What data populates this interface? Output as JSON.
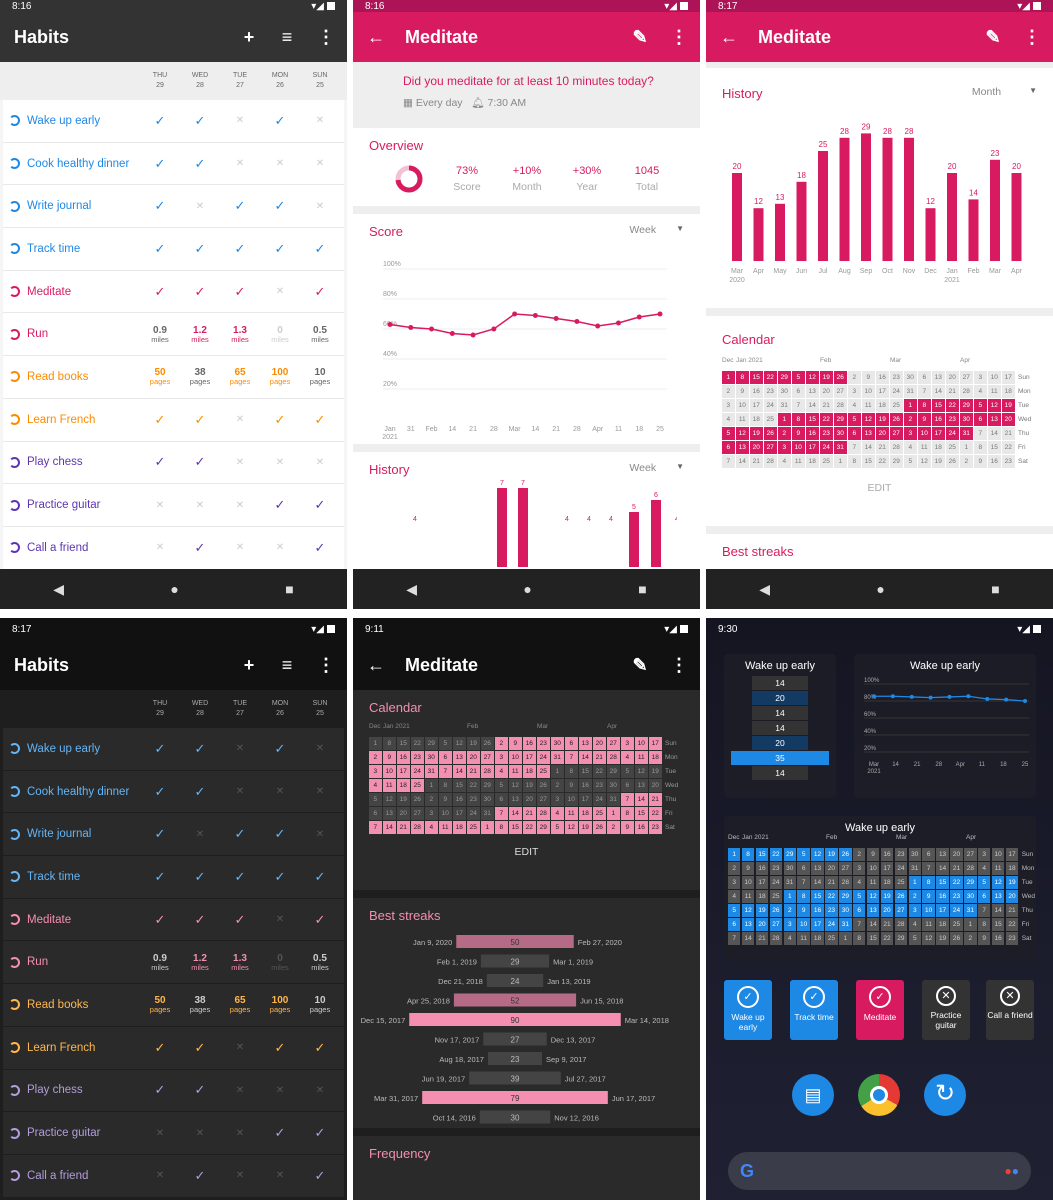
{
  "status": {
    "t1": "8:16",
    "t2": "8:16",
    "t3": "8:17",
    "t4": "8:17",
    "t5": "9:11",
    "t6": "9:30"
  },
  "habits_header": {
    "title": "Habits",
    "add": "+",
    "filter": "≡",
    "more": "⋮"
  },
  "days": [
    {
      "d": "THU",
      "n": "29"
    },
    {
      "d": "WED",
      "n": "28"
    },
    {
      "d": "TUE",
      "n": "27"
    },
    {
      "d": "MON",
      "n": "26"
    },
    {
      "d": "SUN",
      "n": "25"
    }
  ],
  "habits": [
    {
      "name": "Wake up early",
      "color": "#1e88e5",
      "dcolor": "#64b5f6",
      "vals": [
        "c",
        "c",
        "x",
        "c",
        "x"
      ]
    },
    {
      "name": "Cook healthy dinner",
      "color": "#1e88e5",
      "dcolor": "#64b5f6",
      "vals": [
        "c",
        "c",
        "x",
        "x",
        "x"
      ]
    },
    {
      "name": "Write journal",
      "color": "#1e88e5",
      "dcolor": "#64b5f6",
      "vals": [
        "c",
        "x",
        "c",
        "c",
        "x"
      ]
    },
    {
      "name": "Track time",
      "color": "#1e88e5",
      "dcolor": "#64b5f6",
      "vals": [
        "c",
        "c",
        "c",
        "c",
        "c"
      ]
    },
    {
      "name": "Meditate",
      "color": "#d81b60",
      "dcolor": "#f48fb1",
      "vals": [
        "c",
        "c",
        "c",
        "x",
        "c"
      ]
    },
    {
      "name": "Run",
      "color": "#d81b60",
      "dcolor": "#f48fb1",
      "num": [
        [
          "0.9",
          "miles",
          0
        ],
        [
          "1.2",
          "miles",
          1
        ],
        [
          "1.3",
          "miles",
          1
        ],
        [
          "0",
          "miles",
          2
        ],
        [
          "0.5",
          "miles",
          0
        ]
      ]
    },
    {
      "name": "Read books",
      "color": "#fb8c00",
      "dcolor": "#ffb74d",
      "num": [
        [
          "50",
          "pages",
          1
        ],
        [
          "38",
          "pages",
          0
        ],
        [
          "65",
          "pages",
          1
        ],
        [
          "100",
          "pages",
          1
        ],
        [
          "10",
          "pages",
          0
        ]
      ]
    },
    {
      "name": "Learn French",
      "color": "#fb8c00",
      "dcolor": "#ffb74d",
      "vals": [
        "c",
        "c",
        "x",
        "c",
        "c"
      ]
    },
    {
      "name": "Play chess",
      "color": "#5e35b1",
      "dcolor": "#b39ddb",
      "vals": [
        "c",
        "c",
        "x",
        "x",
        "x"
      ]
    },
    {
      "name": "Practice guitar",
      "color": "#5e35b1",
      "dcolor": "#b39ddb",
      "vals": [
        "x",
        "x",
        "x",
        "c",
        "c"
      ]
    },
    {
      "name": "Call a friend",
      "color": "#5e35b1",
      "dcolor": "#b39ddb",
      "vals": [
        "x",
        "c",
        "x",
        "x",
        "c"
      ]
    }
  ],
  "meditate": {
    "title": "Meditate",
    "question": "Did you meditate for at least 10 minutes today?",
    "freq": "Every day",
    "time": "7:30 AM"
  },
  "overview": {
    "title": "Overview",
    "items": [
      {
        "v": "73%",
        "l": "Score"
      },
      {
        "v": "+10%",
        "l": "Month"
      },
      {
        "v": "+30%",
        "l": "Year"
      },
      {
        "v": "1045",
        "l": "Total"
      }
    ],
    "score": 0.73
  },
  "score_card": {
    "title": "Score",
    "period": "Week",
    "yticks": [
      "100%",
      "80%",
      "60%",
      "40%",
      "20%"
    ],
    "xticks": [
      "Jan\n2021",
      "31",
      "Feb",
      "14",
      "21",
      "28",
      "Mar",
      "14",
      "21",
      "28",
      "Apr",
      "11",
      "18",
      "25"
    ]
  },
  "history_card": {
    "title": "History",
    "period": "Week",
    "labels": [
      "4",
      "7",
      "7",
      "4",
      "4",
      "4",
      "5",
      "6",
      "4"
    ]
  },
  "history_month": {
    "title": "History",
    "period": "Month",
    "labels": [
      "Mar\n2020",
      "Apr",
      "May",
      "Jun",
      "Jul",
      "Aug",
      "Sep",
      "Oct",
      "Nov",
      "Dec",
      "Jan\n2021",
      "Feb",
      "Mar",
      "Apr"
    ]
  },
  "chart_data": [
    {
      "type": "line",
      "title": "Score",
      "x": [
        "Jan 2021",
        "31",
        "Feb",
        "14",
        "21",
        "28",
        "Mar",
        "14",
        "21",
        "28",
        "Apr",
        "11",
        "18",
        "25"
      ],
      "values": [
        63,
        61,
        60,
        57,
        56,
        60,
        70,
        69,
        67,
        65,
        62,
        64,
        68,
        70
      ],
      "ylim": [
        0,
        100
      ]
    },
    {
      "type": "bar",
      "title": "History",
      "categories": [
        "Mar 2020",
        "Apr",
        "May",
        "Jun",
        "Jul",
        "Aug",
        "Sep",
        "Oct",
        "Nov",
        "Dec",
        "Jan 2021",
        "Feb",
        "Mar",
        "Apr"
      ],
      "values": [
        20,
        12,
        13,
        18,
        25,
        28,
        29,
        28,
        28,
        12,
        20,
        14,
        23,
        20
      ]
    },
    {
      "type": "bar",
      "title": "Best streaks",
      "categories": [
        "Jan 9, 2020",
        "Feb 1, 2019",
        "Dec 21, 2018",
        "Apr 25, 2018",
        "Dec 15, 2017",
        "Nov 17, 2017",
        "Aug 18, 2017",
        "Jun 19, 2017",
        "Mar 31, 2017",
        "Oct 14, 2016"
      ],
      "values": [
        50,
        29,
        24,
        52,
        90,
        27,
        23,
        39,
        79,
        30
      ],
      "ends": [
        "Feb 27, 2020",
        "Mar 1, 2019",
        "Jan 13, 2019",
        "Jun 15, 2018",
        "Mar 14, 2018",
        "Dec 13, 2017",
        "Sep 9, 2017",
        "Jul 27, 2017",
        "Jun 17, 2017",
        "Nov 12, 2016"
      ]
    }
  ],
  "calendar": {
    "title": "Calendar",
    "edit": "EDIT",
    "months": [
      "Dec",
      "Jan 2021",
      "Feb",
      "Mar",
      "Apr"
    ],
    "weekdays": [
      "Sun",
      "Mon",
      "Tue",
      "Wed",
      "Thu",
      "Fri",
      "Sat"
    ]
  },
  "streaks_title": "Best streaks",
  "frequency_title": "Frequency",
  "widgets": {
    "w1": "Wake up early",
    "w1vals": [
      "14",
      "20",
      "14",
      "14",
      "20",
      "35",
      "14"
    ],
    "w2": "Wake up early",
    "w2y": [
      "100%",
      "80%",
      "60%",
      "40%",
      "20%"
    ],
    "w2x": [
      "Mar\n2021",
      "14",
      "21",
      "28",
      "Apr",
      "11",
      "18",
      "25"
    ],
    "w3": "Wake up early",
    "buttons": [
      {
        "l": "Wake up early",
        "c": "#1e88e5",
        "i": "✓"
      },
      {
        "l": "Track time",
        "c": "#1e88e5",
        "i": "✓"
      },
      {
        "l": "Meditate",
        "c": "#d81b60",
        "i": "✓"
      },
      {
        "l": "Practice guitar",
        "c": "#333",
        "i": "✕"
      },
      {
        "l": "Call a friend",
        "c": "#333",
        "i": "✕"
      }
    ]
  }
}
